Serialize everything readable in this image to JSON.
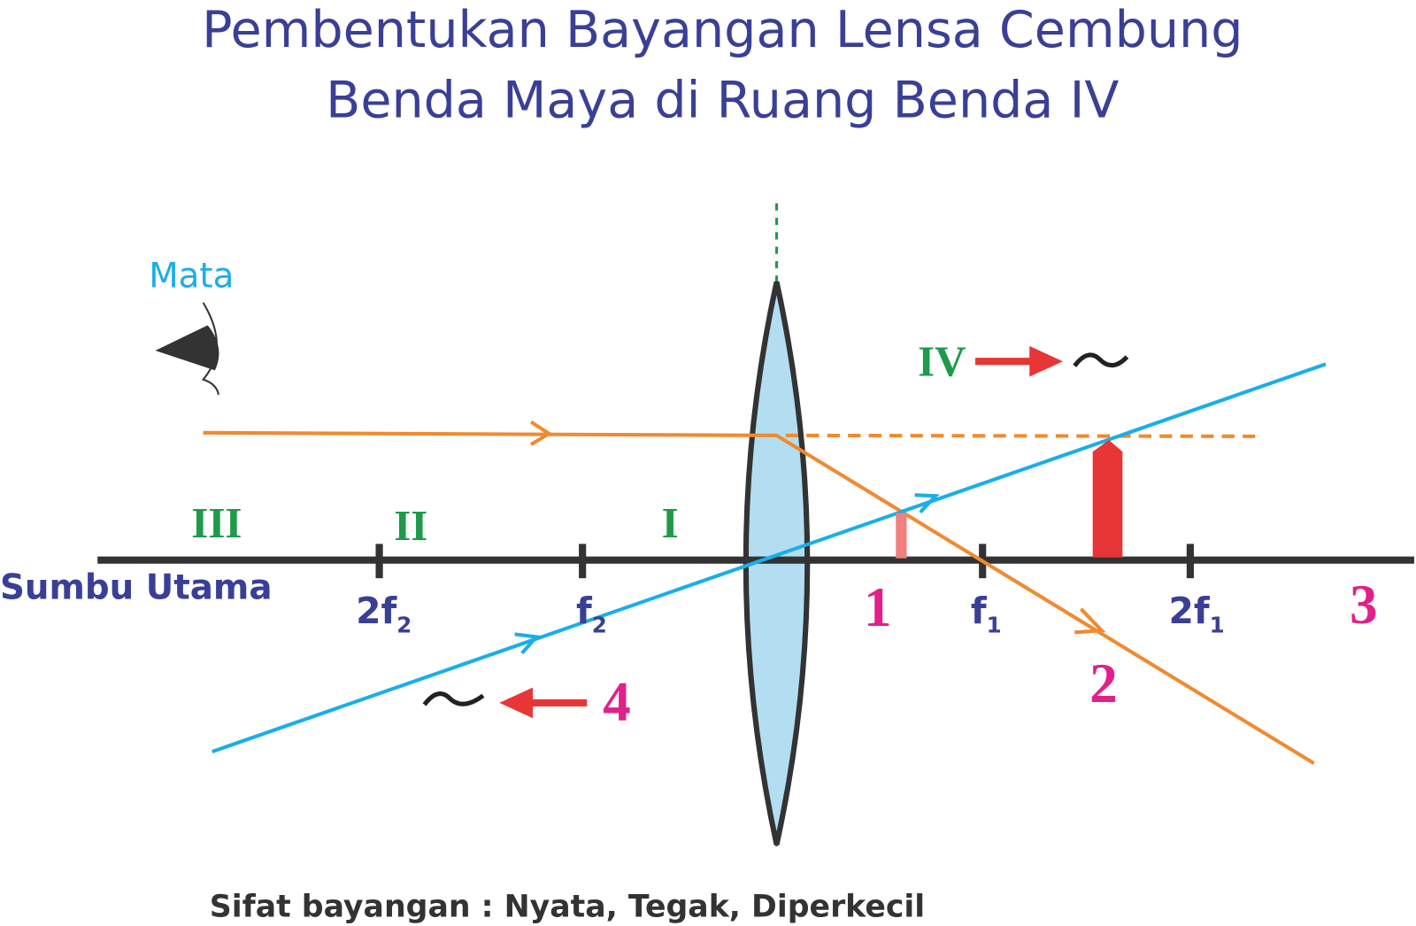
{
  "title": {
    "line1": "Pembentukan Bayangan Lensa Cembung",
    "line2": "Benda Maya di Ruang Benda IV"
  },
  "eye_label": "Mata",
  "axis_label": "Sumbu Utama",
  "regions": {
    "r4": "IV",
    "r3": "III",
    "r2": "II",
    "r1": "I"
  },
  "points": [
    {
      "main": "2f",
      "sub": "2"
    },
    {
      "main": "f",
      "sub": "2"
    },
    {
      "main": "f",
      "sub": "1"
    },
    {
      "main": "2f",
      "sub": "1"
    }
  ],
  "numbers": {
    "n1": "1",
    "n2": "2",
    "n3": "3",
    "n4": "4"
  },
  "conclusion": "Sifat bayangan : Nyata, Tegak, Diperkecil"
}
